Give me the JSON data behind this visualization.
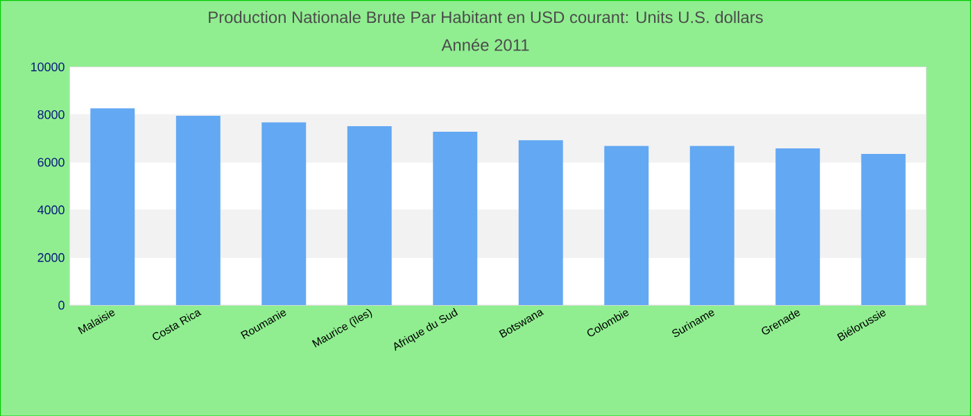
{
  "chart_data": {
    "type": "bar",
    "title": "Production Nationale Brute Par Habitant en USD courant: Units U.S. dollars",
    "subtitle": "Année 2011",
    "categories": [
      "Malaisie",
      "Costa Rica",
      "Roumanie",
      "Maurice (îles)",
      "Afrique du Sud",
      "Botswana",
      "Colombie",
      "Suriname",
      "Grenade",
      "Biélorussie"
    ],
    "values": [
      8260,
      7950,
      7670,
      7510,
      7280,
      6920,
      6680,
      6680,
      6580,
      6350
    ],
    "color": "#63a8f3",
    "ylim": [
      0,
      10000
    ],
    "yticks": [
      0,
      2000,
      4000,
      6000,
      8000,
      10000
    ],
    "grid": "y"
  }
}
